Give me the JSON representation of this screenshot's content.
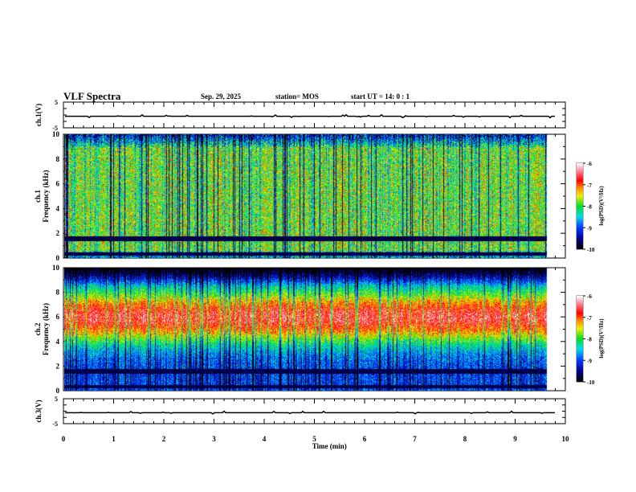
{
  "header": {
    "title": "VLF Spectra",
    "date": "Sep. 29, 2025",
    "station": "station= MOS",
    "start": "start  UT =   14: 0  : 1"
  },
  "chart_data": [
    {
      "type": "line",
      "name": "ch1-waveform",
      "ylabel": "ch.1(V)",
      "ylim": [
        -5,
        5
      ],
      "yticks": [
        "5",
        "-5"
      ],
      "baseline_value": 0,
      "xlim": [
        0,
        10
      ]
    },
    {
      "type": "heatmap",
      "name": "ch1-spectrogram",
      "ylabel_top": "ch.1",
      "ylabel": "Frequency (kHz)",
      "ylim": [
        0,
        10
      ],
      "yticks": [
        "0",
        "2",
        "4",
        "6",
        "8",
        "10"
      ],
      "xlim": [
        0,
        10
      ],
      "data_end_min": 9.8,
      "dominant_level_range": [
        -8.5,
        -7
      ],
      "colorbar": {
        "label": "log(PSD)(V²/Hz)",
        "range": [
          -10,
          -6
        ],
        "ticks": [
          "-6",
          "-7",
          "-8",
          "-9",
          "-10"
        ]
      }
    },
    {
      "type": "heatmap",
      "name": "ch2-spectrogram",
      "ylabel_top": "ch.2",
      "ylabel": "Frequency (kHz)",
      "ylim": [
        0,
        10
      ],
      "yticks": [
        "0",
        "2",
        "4",
        "6",
        "8",
        "10"
      ],
      "xlim": [
        0,
        10
      ],
      "data_end_min": 9.8,
      "dominant_level_range": [
        -7.5,
        -6.8
      ],
      "colorbar": {
        "label": "log(PSD)(V²/Hz)",
        "range": [
          -10,
          -6
        ],
        "ticks": [
          "-6",
          "-7",
          "-8",
          "-9",
          "-10"
        ]
      }
    },
    {
      "type": "line",
      "name": "ch3-waveform",
      "ylabel": "ch.3(V)",
      "ylim": [
        -5,
        5
      ],
      "yticks": [
        "5",
        "-5"
      ],
      "baseline_value": 0,
      "xlim": [
        0,
        10
      ],
      "xlabel": "Time  (min)",
      "xticks": [
        "0",
        "1",
        "2",
        "3",
        "4",
        "5",
        "6",
        "7",
        "8",
        "9",
        "10"
      ]
    }
  ]
}
